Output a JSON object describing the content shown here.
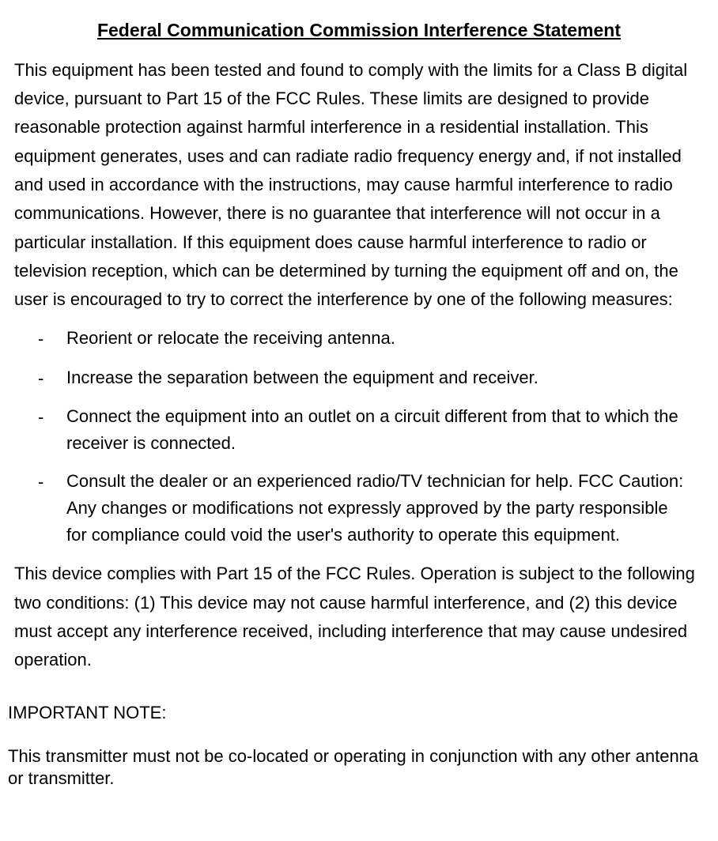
{
  "document": {
    "title": "Federal Communication Commission Interference Statement",
    "paragraph1": "This equipment has been tested and found to comply with the limits for a Class B digital device, pursuant to Part 15 of the FCC Rules. These limits are designed to provide reasonable protection against harmful interference in a residential installation. This equipment generates, uses and can radiate radio frequency energy and, if not installed and used in accordance with the instructions, may cause harmful interference to radio communications. However, there is no guarantee that interference will not occur in a particular installation. If this equipment does cause harmful interference to radio or television reception, which can be determined by turning the equipment off and on, the user is encouraged to try to correct the interference by one of the following measures:",
    "list_marker": "-",
    "list_items": [
      "Reorient or relocate the receiving antenna.",
      "Increase the separation between the equipment and receiver.",
      "Connect the equipment into an outlet on a circuit different from that to which the receiver is connected.",
      "Consult the dealer or an experienced radio/TV technician for help. FCC Caution: Any changes or modifications not expressly approved by the party responsible for compliance could void the user's authority to operate this equipment."
    ],
    "paragraph2": "This device complies with Part 15 of the FCC Rules. Operation is subject to the following two conditions: (1) This device may not cause harmful interference, and (2) this device must accept any interference received, including interference that may cause undesired operation.",
    "note_heading": "IMPORTANT NOTE:",
    "note_text": "This transmitter must not be co-located or operating in conjunction with any other antenna or transmitter.",
    "styling": {
      "background_color": "#ffffff",
      "text_color": "#000000",
      "title_fontsize": 23,
      "body_fontsize": 22,
      "font_family": "Arial",
      "line_height": 1.6
    }
  }
}
